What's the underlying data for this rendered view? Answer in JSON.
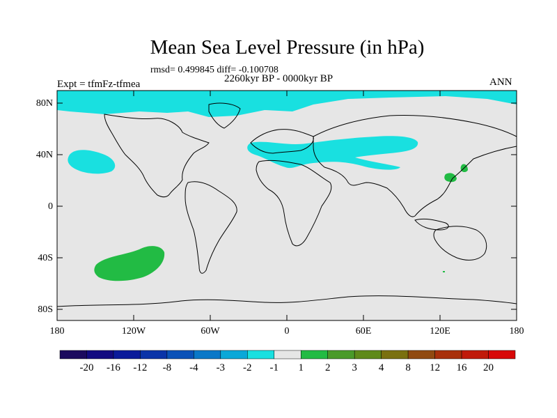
{
  "title": "Mean Sea Level Pressure (in hPa)",
  "stats_line": "rmsd= 0.499845 diff= -0.100708",
  "period": "2260kyr BP - 0000kyr BP",
  "expt_label": "Expt = tfmFz-tfmea",
  "season": "ANN",
  "lat_labels": [
    "80N",
    "40N",
    "0",
    "40S",
    "80S"
  ],
  "lon_labels": [
    "180",
    "120W",
    "60W",
    "0",
    "60E",
    "120E",
    "180"
  ],
  "colorbar": {
    "labels": [
      "-20",
      "-16",
      "-12",
      "-8",
      "-4",
      "-3",
      "-2",
      "-1",
      "1",
      "2",
      "3",
      "4",
      "8",
      "12",
      "16",
      "20"
    ],
    "colors": [
      "#1b0a5e",
      "#120a80",
      "#0a1a9a",
      "#0a34a8",
      "#0a52b8",
      "#0a78c8",
      "#0aa8d8",
      "#19e0e0",
      "#e6e6e6",
      "#22bb44",
      "#4a9a2a",
      "#5f8a1a",
      "#7a7010",
      "#904a10",
      "#a8300a",
      "#c01a0a",
      "#d80808"
    ]
  },
  "colors": {
    "ocean_bg": "#e6e6e6",
    "neg_anomaly": "#19e0e0",
    "pos_anomaly": "#22bb44",
    "coast": "#000000"
  }
}
